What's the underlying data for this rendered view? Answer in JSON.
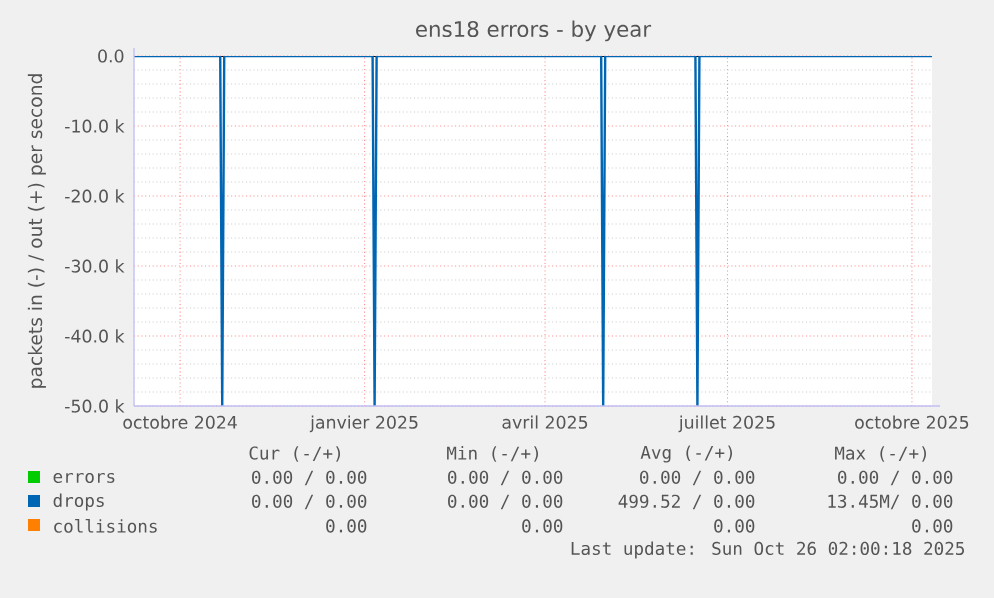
{
  "chart_data": {
    "type": "line",
    "title": "ens18 errors - by year",
    "ylabel": "packets in (-) / out (+) per second",
    "xlim": [
      "2024-09-08",
      "2025-10-11"
    ],
    "ylim": [
      -50000,
      0
    ],
    "xticks": [
      {
        "value": "2024-10-01",
        "label": "octobre 2024"
      },
      {
        "value": "2025-01-01",
        "label": "janvier 2025"
      },
      {
        "value": "2025-04-01",
        "label": "avril 2025"
      },
      {
        "value": "2025-07-01",
        "label": "juillet 2025"
      },
      {
        "value": "2025-10-01",
        "label": "octobre 2025"
      }
    ],
    "yticks": [
      {
        "value": 0,
        "label": "0.0"
      },
      {
        "value": -10000,
        "label": "-10.0 k"
      },
      {
        "value": -20000,
        "label": "-20.0 k"
      },
      {
        "value": -30000,
        "label": "-30.0 k"
      },
      {
        "value": -40000,
        "label": "-40.0 k"
      },
      {
        "value": -50000,
        "label": "-50.0 k"
      }
    ],
    "grid": true,
    "legend": "bottom left",
    "marker": "none",
    "line_style": "solid",
    "series": [
      {
        "name": "errors",
        "color": "#00cc00"
      },
      {
        "name": "drops",
        "color": "#0066b3",
        "x": [
          "2024-09-08",
          "2024-10-21",
          "2024-10-22",
          "2024-10-23",
          "2025-01-05",
          "2025-01-06",
          "2025-01-07",
          "2025-04-29",
          "2025-04-30",
          "2025-05-01",
          "2025-06-15",
          "2025-06-16",
          "2025-06-17",
          "2025-10-11"
        ],
        "values": [
          0,
          0,
          -50000,
          0,
          0,
          -50000,
          0,
          0,
          -50000,
          0,
          0,
          -50000,
          0,
          0
        ]
      },
      {
        "name": "collisions",
        "color": "#ff8000"
      }
    ],
    "ref_lines": [
      {
        "axis": "y",
        "value": 0,
        "color": "#000000"
      }
    ],
    "annotations": [
      "Cur (-/+)",
      "Min (-/+)",
      "Avg (-/+)",
      "Max (-/+)",
      "0.00 /  0.00",
      "0.00 /  0.00",
      "0.00 /  0.00",
      "0.00 /  0.00",
      "0.00 /  0.00",
      "0.00 /  0.00",
      "499.52 /  0.00",
      "13.45M/  0.00",
      "0.00",
      "0.00",
      "0.00",
      "0.00",
      "Last update: Sun Oct 26 02:00:18 2025"
    ]
  }
}
